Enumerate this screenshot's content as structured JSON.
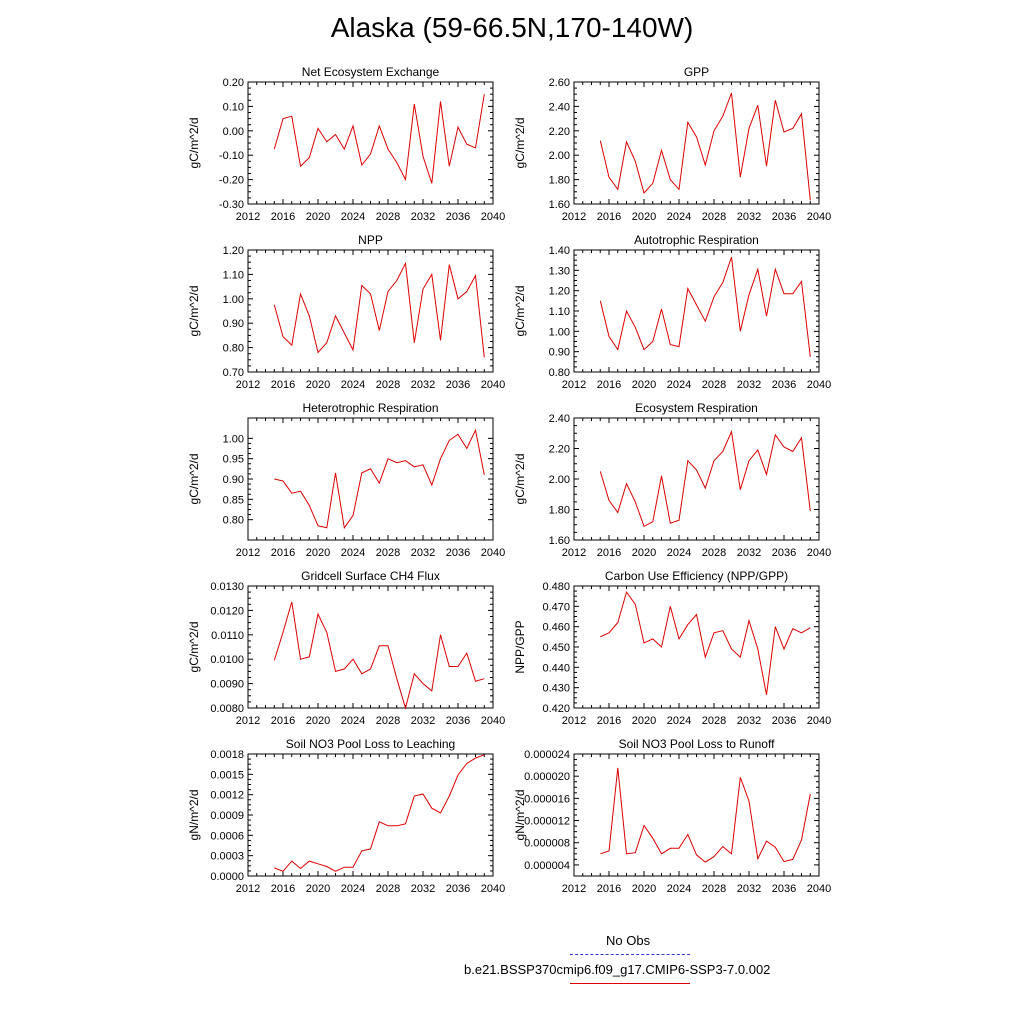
{
  "title": "Alaska (59-66.5N,170-140W)",
  "legend": {
    "obs_label": "No Obs",
    "obs_color": "#3333dd",
    "model_label": "b.e21.BSSP370cmip6.f09_g17.CMIP6-SSP3-7.0.002",
    "model_color": "#dd0000"
  },
  "chart_data": [
    {
      "type": "line",
      "title": "Net Ecosystem Exchange",
      "ylabel": "gC/m^2/d",
      "xlim": [
        2012,
        2040
      ],
      "ylim": [
        -0.3,
        0.2
      ],
      "xticks": [
        2012,
        2016,
        2020,
        2024,
        2028,
        2032,
        2036,
        2040
      ],
      "yticks": [
        "-0.30",
        "-0.20",
        "-0.10",
        "0.00",
        "0.10",
        "0.20"
      ],
      "x": [
        2015,
        2016,
        2017,
        2018,
        2019,
        2020,
        2021,
        2022,
        2023,
        2024,
        2025,
        2026,
        2027,
        2028,
        2029,
        2030,
        2031,
        2032,
        2033,
        2034,
        2035,
        2036,
        2037,
        2038,
        2039
      ],
      "values": [
        -0.075,
        0.05,
        0.06,
        -0.145,
        -0.11,
        0.01,
        -0.045,
        -0.015,
        -0.075,
        0.02,
        -0.14,
        -0.095,
        0.02,
        -0.075,
        -0.13,
        -0.2,
        0.11,
        -0.105,
        -0.215,
        0.12,
        -0.145,
        0.015,
        -0.055,
        -0.07,
        0.15
      ]
    },
    {
      "type": "line",
      "title": "GPP",
      "ylabel": "gC/m^2/d",
      "xlim": [
        2012,
        2040
      ],
      "ylim": [
        1.6,
        2.6
      ],
      "xticks": [
        2012,
        2016,
        2020,
        2024,
        2028,
        2032,
        2036,
        2040
      ],
      "yticks": [
        "1.60",
        "1.80",
        "2.00",
        "2.20",
        "2.40",
        "2.60"
      ],
      "x": [
        2015,
        2016,
        2017,
        2018,
        2019,
        2020,
        2021,
        2022,
        2023,
        2024,
        2025,
        2026,
        2027,
        2028,
        2029,
        2030,
        2031,
        2032,
        2033,
        2034,
        2035,
        2036,
        2037,
        2038,
        2039
      ],
      "values": [
        2.12,
        1.82,
        1.72,
        2.11,
        1.95,
        1.69,
        1.77,
        2.04,
        1.8,
        1.72,
        2.27,
        2.15,
        1.92,
        2.2,
        2.32,
        2.51,
        1.82,
        2.22,
        2.41,
        1.91,
        2.45,
        2.19,
        2.22,
        2.34,
        1.63
      ]
    },
    {
      "type": "line",
      "title": "NPP",
      "ylabel": "gC/m^2/d",
      "xlim": [
        2012,
        2040
      ],
      "ylim": [
        0.7,
        1.2
      ],
      "xticks": [
        2012,
        2016,
        2020,
        2024,
        2028,
        2032,
        2036,
        2040
      ],
      "yticks": [
        "0.70",
        "0.80",
        "0.90",
        "1.00",
        "1.10",
        "1.20"
      ],
      "x": [
        2015,
        2016,
        2017,
        2018,
        2019,
        2020,
        2021,
        2022,
        2023,
        2024,
        2025,
        2026,
        2027,
        2028,
        2029,
        2030,
        2031,
        2032,
        2033,
        2034,
        2035,
        2036,
        2037,
        2038,
        2039
      ],
      "values": [
        0.975,
        0.845,
        0.81,
        1.02,
        0.93,
        0.78,
        0.82,
        0.93,
        0.86,
        0.79,
        1.055,
        1.02,
        0.87,
        1.03,
        1.075,
        1.145,
        0.82,
        1.04,
        1.1,
        0.83,
        1.14,
        1.0,
        1.03,
        1.095,
        0.76
      ]
    },
    {
      "type": "line",
      "title": "Autotrophic Respiration",
      "ylabel": "gC/m^2/d",
      "xlim": [
        2012,
        2040
      ],
      "ylim": [
        0.8,
        1.4
      ],
      "xticks": [
        2012,
        2016,
        2020,
        2024,
        2028,
        2032,
        2036,
        2040
      ],
      "yticks": [
        "0.80",
        "0.90",
        "1.00",
        "1.10",
        "1.20",
        "1.30",
        "1.40"
      ],
      "x": [
        2015,
        2016,
        2017,
        2018,
        2019,
        2020,
        2021,
        2022,
        2023,
        2024,
        2025,
        2026,
        2027,
        2028,
        2029,
        2030,
        2031,
        2032,
        2033,
        2034,
        2035,
        2036,
        2037,
        2038,
        2039
      ],
      "values": [
        1.15,
        0.975,
        0.91,
        1.1,
        1.02,
        0.91,
        0.95,
        1.11,
        0.935,
        0.925,
        1.21,
        1.13,
        1.05,
        1.17,
        1.24,
        1.365,
        1.0,
        1.18,
        1.305,
        1.075,
        1.305,
        1.185,
        1.185,
        1.245,
        0.875
      ]
    },
    {
      "type": "line",
      "title": "Heterotrophic Respiration",
      "ylabel": "gC/m^2/d",
      "xlim": [
        2012,
        2040
      ],
      "ylim": [
        0.75,
        1.05
      ],
      "xticks": [
        2012,
        2016,
        2020,
        2024,
        2028,
        2032,
        2036,
        2040
      ],
      "yticks": [
        "0.80",
        "0.85",
        "0.90",
        "0.95",
        "1.00"
      ],
      "x": [
        2015,
        2016,
        2017,
        2018,
        2019,
        2020,
        2021,
        2022,
        2023,
        2024,
        2025,
        2026,
        2027,
        2028,
        2029,
        2030,
        2031,
        2032,
        2033,
        2034,
        2035,
        2036,
        2037,
        2038,
        2039
      ],
      "values": [
        0.9,
        0.895,
        0.865,
        0.87,
        0.835,
        0.785,
        0.78,
        0.915,
        0.78,
        0.81,
        0.915,
        0.925,
        0.89,
        0.95,
        0.94,
        0.945,
        0.93,
        0.935,
        0.885,
        0.95,
        0.995,
        1.01,
        0.975,
        1.02,
        0.91
      ]
    },
    {
      "type": "line",
      "title": "Ecosystem Respiration",
      "ylabel": "gC/m^2/d",
      "xlim": [
        2012,
        2040
      ],
      "ylim": [
        1.6,
        2.4
      ],
      "xticks": [
        2012,
        2016,
        2020,
        2024,
        2028,
        2032,
        2036,
        2040
      ],
      "yticks": [
        "1.60",
        "1.80",
        "2.00",
        "2.20",
        "2.40"
      ],
      "x": [
        2015,
        2016,
        2017,
        2018,
        2019,
        2020,
        2021,
        2022,
        2023,
        2024,
        2025,
        2026,
        2027,
        2028,
        2029,
        2030,
        2031,
        2032,
        2033,
        2034,
        2035,
        2036,
        2037,
        2038,
        2039
      ],
      "values": [
        2.05,
        1.86,
        1.78,
        1.97,
        1.85,
        1.69,
        1.72,
        2.02,
        1.71,
        1.73,
        2.12,
        2.06,
        1.94,
        2.12,
        2.18,
        2.31,
        1.93,
        2.12,
        2.19,
        2.03,
        2.29,
        2.21,
        2.18,
        2.27,
        1.79
      ]
    },
    {
      "type": "line",
      "title": "Gridcell Surface CH4 Flux",
      "ylabel": "gC/m^2/d",
      "xlim": [
        2012,
        2040
      ],
      "ylim": [
        0.008,
        0.013
      ],
      "xticks": [
        2012,
        2016,
        2020,
        2024,
        2028,
        2032,
        2036,
        2040
      ],
      "yticks": [
        "0.0080",
        "0.0090",
        "0.0100",
        "0.0110",
        "0.0120",
        "0.0130"
      ],
      "x": [
        2015,
        2016,
        2017,
        2018,
        2019,
        2020,
        2021,
        2022,
        2023,
        2024,
        2025,
        2026,
        2027,
        2028,
        2029,
        2030,
        2031,
        2032,
        2033,
        2034,
        2035,
        2036,
        2037,
        2038,
        2039
      ],
      "values": [
        0.00995,
        0.0111,
        0.01235,
        0.01,
        0.0101,
        0.01185,
        0.0111,
        0.0095,
        0.0096,
        0.01,
        0.0094,
        0.0096,
        0.01055,
        0.01055,
        0.0092,
        0.008,
        0.0094,
        0.009,
        0.0087,
        0.011,
        0.0097,
        0.0097,
        0.01025,
        0.0091,
        0.0092
      ]
    },
    {
      "type": "line",
      "title": "Carbon Use Efficiency (NPP/GPP)",
      "ylabel": "NPP/GPP",
      "xlim": [
        2012,
        2040
      ],
      "ylim": [
        0.42,
        0.48
      ],
      "xticks": [
        2012,
        2016,
        2020,
        2024,
        2028,
        2032,
        2036,
        2040
      ],
      "yticks": [
        "0.420",
        "0.430",
        "0.440",
        "0.450",
        "0.460",
        "0.470",
        "0.480"
      ],
      "x": [
        2015,
        2016,
        2017,
        2018,
        2019,
        2020,
        2021,
        2022,
        2023,
        2024,
        2025,
        2026,
        2027,
        2028,
        2029,
        2030,
        2031,
        2032,
        2033,
        2034,
        2035,
        2036,
        2037,
        2038,
        2039
      ],
      "values": [
        0.455,
        0.457,
        0.462,
        0.477,
        0.471,
        0.452,
        0.454,
        0.45,
        0.47,
        0.454,
        0.461,
        0.466,
        0.445,
        0.457,
        0.458,
        0.449,
        0.445,
        0.463,
        0.449,
        0.4265,
        0.46,
        0.449,
        0.459,
        0.457,
        0.4595
      ]
    },
    {
      "type": "line",
      "title": "Soil NO3 Pool Loss to Leaching",
      "ylabel": "gN/m^2/d",
      "xlim": [
        2012,
        2040
      ],
      "ylim": [
        0.0,
        0.0018
      ],
      "xticks": [
        2012,
        2016,
        2020,
        2024,
        2028,
        2032,
        2036,
        2040
      ],
      "yticks": [
        "0.0000",
        "0.0003",
        "0.0006",
        "0.0009",
        "0.0012",
        "0.0015",
        "0.0018"
      ],
      "x": [
        2015,
        2016,
        2017,
        2018,
        2019,
        2020,
        2021,
        2022,
        2023,
        2024,
        2025,
        2026,
        2027,
        2028,
        2029,
        2030,
        2031,
        2032,
        2033,
        2034,
        2035,
        2036,
        2037,
        2038,
        2039
      ],
      "values": [
        0.00012,
        7e-05,
        0.00022,
        0.00011,
        0.00022,
        0.00018,
        0.00014,
        7e-05,
        0.00013,
        0.00013,
        0.00037,
        0.0004,
        0.0008,
        0.00074,
        0.00074,
        0.00077,
        0.00118,
        0.00121,
        0.001,
        0.00093,
        0.00118,
        0.00149,
        0.00166,
        0.00174,
        0.00179
      ]
    },
    {
      "type": "line",
      "title": "Soil NO3 Pool Loss to Runoff",
      "ylabel": "gN/m^2/d",
      "xlim": [
        2012,
        2040
      ],
      "ylim": [
        2e-06,
        2.4e-05
      ],
      "xticks": [
        2012,
        2016,
        2020,
        2024,
        2028,
        2032,
        2036,
        2040
      ],
      "yticks": [
        "0.000004",
        "0.000008",
        "0.000012",
        "0.000016",
        "0.000020",
        "0.000024"
      ],
      "x": [
        2015,
        2016,
        2017,
        2018,
        2019,
        2020,
        2021,
        2022,
        2023,
        2024,
        2025,
        2026,
        2027,
        2028,
        2029,
        2030,
        2031,
        2032,
        2033,
        2034,
        2035,
        2036,
        2037,
        2038,
        2039
      ],
      "values": [
        6e-06,
        6.5e-06,
        2.15e-05,
        6e-06,
        6.2e-06,
        1.11e-05,
        8.8e-06,
        6e-06,
        7e-06,
        7e-06,
        9.5e-06,
        5.8e-06,
        4.5e-06,
        5.5e-06,
        7.3e-06,
        6e-06,
        1.98e-05,
        1.55e-05,
        5.1e-06,
        8.3e-06,
        7.2e-06,
        4.6e-06,
        5e-06,
        8.5e-06,
        1.68e-05
      ]
    }
  ]
}
